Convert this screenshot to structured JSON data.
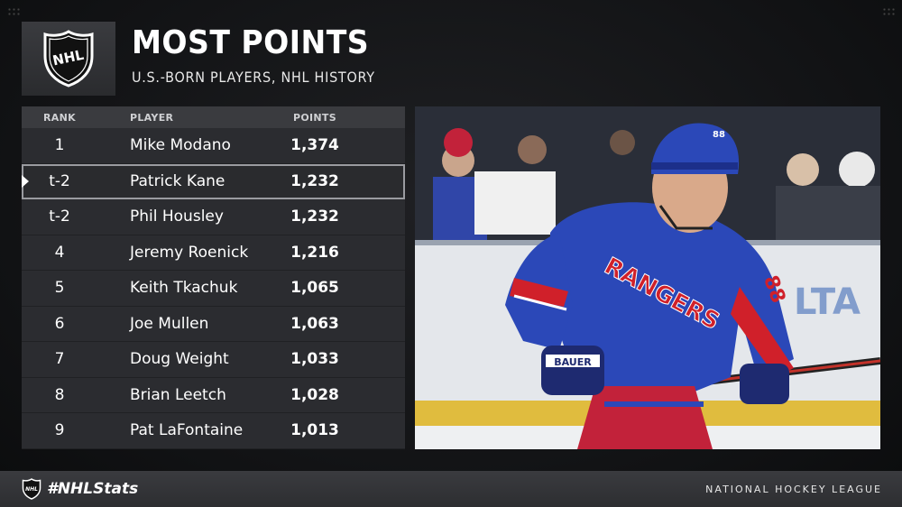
{
  "header": {
    "title": "MOST POINTS",
    "subtitle": "U.S.-BORN PLAYERS, NHL HISTORY"
  },
  "table": {
    "columns": {
      "rank": "RANK",
      "player": "PLAYER",
      "points": "POINTS"
    },
    "rows": [
      {
        "rank": "1",
        "player": "Mike Modano",
        "points": "1,374"
      },
      {
        "rank": "t-2",
        "player": "Patrick Kane",
        "points": "1,232"
      },
      {
        "rank": "t-2",
        "player": "Phil Housley",
        "points": "1,232"
      },
      {
        "rank": "4",
        "player": "Jeremy Roenick",
        "points": "1,216"
      },
      {
        "rank": "5",
        "player": "Keith Tkachuk",
        "points": "1,065"
      },
      {
        "rank": "6",
        "player": "Joe Mullen",
        "points": "1,063"
      },
      {
        "rank": "7",
        "player": "Doug Weight",
        "points": "1,033"
      },
      {
        "rank": "8",
        "player": "Brian Leetch",
        "points": "1,028"
      },
      {
        "rank": "9",
        "player": "Pat LaFontaine",
        "points": "1,013"
      }
    ]
  },
  "photo": {
    "jersey_text": "RANGERS",
    "jersey_number": "88",
    "glove_text": "BAUER",
    "icon": "hockey-player-photo"
  },
  "footer": {
    "hashtag": "#NHLStats",
    "league": "NATIONAL HOCKEY LEAGUE"
  },
  "colors": {
    "background": "#141517",
    "panel": "#2b2c30",
    "jersey_blue": "#2b48b8",
    "jersey_red": "#d0202a"
  }
}
